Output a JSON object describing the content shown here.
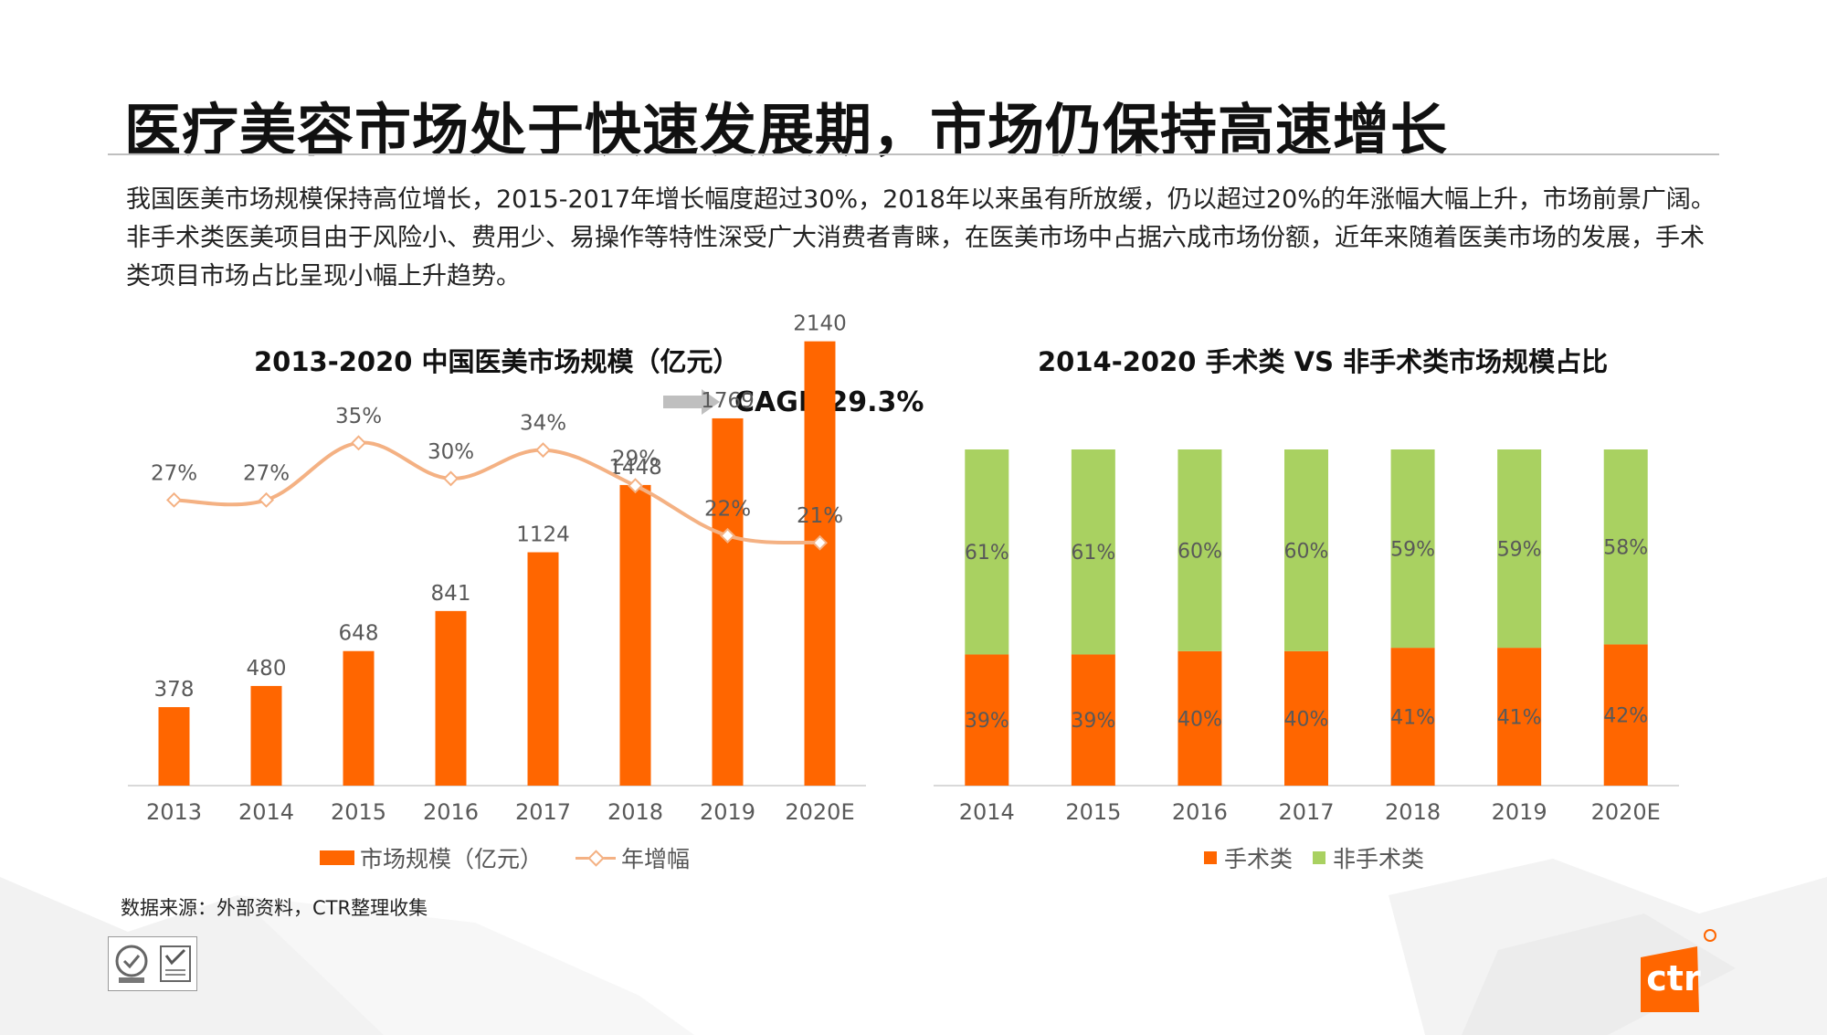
{
  "page": {
    "title": "医疗美容市场处于快速发展期，市场仍保持高速增长",
    "paragraphs": [
      "我国医美市场规模保持高位增长，2015-2017年增长幅度超过30%，2018年以来虽有所放缓，仍以超过20%的年涨幅大幅上升，市场前景广阔。",
      "非手术类医美项目由于风险小、费用少、易操作等特性深受广大消费者青睐，在医美市场中占据六成市场份额，近年来随着医美市场的发展，手术类项目市场占比呈现小幅上升趋势。"
    ],
    "cagr_label": "CAGR 29.3%",
    "source": "数据来源：外部资料，CTR整理收集",
    "brand": "ctr",
    "colors": {
      "orange": "#FF6600",
      "green": "#A9D161",
      "line": "#F4B183",
      "axis": "#D9D9D9",
      "label": "#595959"
    }
  },
  "chart_data": [
    {
      "type": "bar",
      "title": "2013-2020 中国医美市场规模（亿元）",
      "categories": [
        "2013",
        "2014",
        "2015",
        "2016",
        "2017",
        "2018",
        "2019",
        "2020E"
      ],
      "series": [
        {
          "name": "市场规模（亿元）",
          "type": "bar",
          "values": [
            378,
            480,
            648,
            841,
            1124,
            1448,
            1769,
            2140
          ],
          "labels": [
            "378",
            "480",
            "648",
            "841",
            "1124",
            "1448",
            "1769",
            "2140"
          ],
          "color": "#FF6600"
        },
        {
          "name": "年增幅",
          "type": "line",
          "values": [
            27,
            27,
            35,
            30,
            34,
            29,
            22,
            21
          ],
          "labels": [
            "27%",
            "27%",
            "35%",
            "30%",
            "34%",
            "29%",
            "22%",
            "21%"
          ],
          "color": "#F4B183",
          "unit": "%"
        }
      ],
      "ylim": [
        0,
        2200
      ],
      "legend": "bottom",
      "grid": false
    },
    {
      "type": "bar",
      "stacked": true,
      "percent": true,
      "title": "2014-2020 手术类 VS 非手术类市场规模占比",
      "categories": [
        "2014",
        "2015",
        "2016",
        "2017",
        "2018",
        "2019",
        "2020E"
      ],
      "series": [
        {
          "name": "手术类",
          "values": [
            39,
            39,
            40,
            40,
            41,
            41,
            42
          ],
          "labels": [
            "39%",
            "39%",
            "40%",
            "40%",
            "41%",
            "41%",
            "42%"
          ],
          "color": "#FF6600"
        },
        {
          "name": "非手术类",
          "values": [
            61,
            61,
            60,
            60,
            59,
            59,
            58
          ],
          "labels": [
            "61%",
            "61%",
            "60%",
            "60%",
            "59%",
            "59%",
            "58%"
          ],
          "color": "#A9D161"
        }
      ],
      "ylim": [
        0,
        100
      ],
      "legend": "bottom",
      "grid": false
    }
  ]
}
